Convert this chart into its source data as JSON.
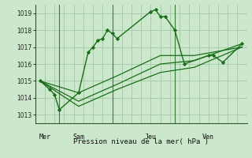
{
  "background_color": "#cce8cc",
  "grid_color": "#aaccaa",
  "line_color": "#1a6e1a",
  "marker_color": "#1a6e1a",
  "xlabel": "Pression niveau de la mer( hPa )",
  "ylim": [
    1012.5,
    1019.5
  ],
  "yticks": [
    1013,
    1014,
    1015,
    1016,
    1017,
    1018,
    1019
  ],
  "xlim": [
    0,
    22
  ],
  "day_labels": [
    "Mer",
    "Sam",
    "Jeu",
    "Ven"
  ],
  "day_positions": [
    1,
    4.5,
    12,
    18
  ],
  "day_vlines": [
    2.5,
    8,
    14.5
  ],
  "series1": {
    "x": [
      0.5,
      1.5,
      2.0,
      2.5,
      4.5,
      5.5,
      6.0,
      6.5,
      7.0,
      7.5,
      8.0,
      8.5,
      12.0,
      12.5,
      13.0,
      13.5,
      14.5,
      15.5,
      18.0,
      18.5,
      19.5,
      21.5
    ],
    "y": [
      1015.0,
      1014.5,
      1014.2,
      1013.3,
      1014.3,
      1016.7,
      1017.0,
      1017.4,
      1017.5,
      1018.0,
      1017.8,
      1017.5,
      1019.1,
      1019.2,
      1018.8,
      1018.8,
      1018.0,
      1016.0,
      1016.5,
      1016.5,
      1016.1,
      1017.2
    ]
  },
  "series2": {
    "x": [
      0.5,
      4.5,
      8.5,
      13.0,
      16.5,
      21.5
    ],
    "y": [
      1015.0,
      1014.3,
      1015.3,
      1016.5,
      1016.5,
      1017.0
    ]
  },
  "series3": {
    "x": [
      0.5,
      4.5,
      8.5,
      13.0,
      16.5,
      21.5
    ],
    "y": [
      1015.0,
      1013.8,
      1014.8,
      1016.0,
      1016.2,
      1017.2
    ]
  },
  "series4": {
    "x": [
      0.5,
      4.5,
      8.5,
      13.0,
      16.5,
      21.5
    ],
    "y": [
      1015.0,
      1013.5,
      1014.5,
      1015.5,
      1015.8,
      1017.0
    ]
  }
}
